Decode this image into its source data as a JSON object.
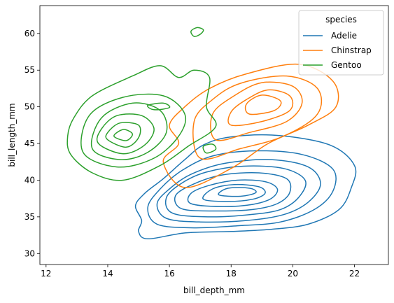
{
  "chart_data": {
    "type": "kde_contour",
    "xlabel": "bill_depth_mm",
    "ylabel": "bill_length_mm",
    "xlim": [
      11.8,
      23.1
    ],
    "ylim": [
      28.5,
      63.8
    ],
    "xticks": [
      12,
      14,
      16,
      18,
      20,
      22
    ],
    "yticks": [
      30,
      35,
      40,
      45,
      50,
      55,
      60
    ],
    "grid": false,
    "legend": {
      "title": "species",
      "placement": "top-right"
    },
    "series": [
      {
        "name": "Adelie",
        "color": "#1f77b4",
        "levels": [
          [
            [
              15.3,
              32.0
            ],
            [
              16.5,
              32.8
            ],
            [
              18.0,
              33.0
            ],
            [
              19.3,
              33.3
            ],
            [
              20.5,
              34.0
            ],
            [
              21.5,
              36.0
            ],
            [
              21.9,
              39.0
            ],
            [
              22.0,
              42.0
            ],
            [
              21.2,
              44.8
            ],
            [
              19.5,
              46.1
            ],
            [
              18.0,
              45.9
            ],
            [
              17.1,
              44.8
            ],
            [
              16.5,
              42.8
            ],
            [
              15.8,
              40.2
            ],
            [
              15.2,
              38.2
            ],
            [
              14.9,
              36.5
            ],
            [
              15.1,
              34.5
            ],
            [
              15.0,
              33.0
            ]
          ],
          [
            [
              15.6,
              34.0
            ],
            [
              16.8,
              33.5
            ],
            [
              18.3,
              33.8
            ],
            [
              19.6,
              34.3
            ],
            [
              20.7,
              36.0
            ],
            [
              21.3,
              38.5
            ],
            [
              21.3,
              41.5
            ],
            [
              20.3,
              43.5
            ],
            [
              18.8,
              44.0
            ],
            [
              17.4,
              43.3
            ],
            [
              16.4,
              41.3
            ],
            [
              15.7,
              38.8
            ],
            [
              15.3,
              36.3
            ]
          ],
          [
            [
              15.9,
              34.8
            ],
            [
              17.0,
              34.3
            ],
            [
              18.5,
              34.5
            ],
            [
              19.7,
              35.3
            ],
            [
              20.5,
              37.0
            ],
            [
              20.9,
              39.5
            ],
            [
              20.5,
              41.8
            ],
            [
              19.3,
              42.8
            ],
            [
              17.8,
              42.3
            ],
            [
              16.7,
              40.8
            ],
            [
              16.0,
              38.8
            ],
            [
              15.6,
              36.8
            ]
          ],
          [
            [
              16.1,
              35.5
            ],
            [
              17.3,
              35.0
            ],
            [
              18.6,
              35.3
            ],
            [
              19.6,
              36.0
            ],
            [
              20.2,
              37.7
            ],
            [
              20.4,
              40.0
            ],
            [
              19.7,
              41.6
            ],
            [
              18.4,
              41.9
            ],
            [
              17.2,
              41.1
            ],
            [
              16.4,
              39.6
            ],
            [
              15.9,
              37.6
            ]
          ],
          [
            [
              16.4,
              36.1
            ],
            [
              17.5,
              35.8
            ],
            [
              18.7,
              36.0
            ],
            [
              19.5,
              36.8
            ],
            [
              19.9,
              38.3
            ],
            [
              19.8,
              40.2
            ],
            [
              18.9,
              41.0
            ],
            [
              17.7,
              40.7
            ],
            [
              16.8,
              39.5
            ],
            [
              16.2,
              37.9
            ]
          ],
          [
            [
              16.7,
              36.8
            ],
            [
              17.7,
              36.4
            ],
            [
              18.7,
              36.7
            ],
            [
              19.3,
              37.5
            ],
            [
              19.5,
              38.8
            ],
            [
              19.1,
              39.8
            ],
            [
              18.2,
              40.0
            ],
            [
              17.3,
              39.3
            ],
            [
              16.7,
              38.2
            ]
          ],
          [
            [
              17.1,
              37.4
            ],
            [
              17.9,
              37.1
            ],
            [
              18.7,
              37.4
            ],
            [
              19.1,
              38.2
            ],
            [
              18.9,
              39.1
            ],
            [
              18.1,
              39.4
            ],
            [
              17.4,
              38.8
            ]
          ],
          [
            [
              17.6,
              38.0
            ],
            [
              18.3,
              37.8
            ],
            [
              18.8,
              38.3
            ],
            [
              18.6,
              38.9
            ],
            [
              17.9,
              38.9
            ]
          ]
        ]
      },
      {
        "name": "Chinstrap",
        "color": "#ff7f0e",
        "levels": [
          [
            [
              16.5,
              39.0
            ],
            [
              18.0,
              41.6
            ],
            [
              19.2,
              45.0
            ],
            [
              20.5,
              47.5
            ],
            [
              21.4,
              50.0
            ],
            [
              21.3,
              53.5
            ],
            [
              20.2,
              55.8
            ],
            [
              18.5,
              54.5
            ],
            [
              17.3,
              52.5
            ],
            [
              16.5,
              50.0
            ],
            [
              16.0,
              47.5
            ],
            [
              16.3,
              45.0
            ],
            [
              15.8,
              42.5
            ]
          ],
          [
            [
              17.0,
              43.0
            ],
            [
              18.3,
              44.3
            ],
            [
              19.7,
              46.0
            ],
            [
              20.8,
              49.0
            ],
            [
              20.8,
              52.5
            ],
            [
              19.8,
              54.2
            ],
            [
              18.3,
              53.2
            ],
            [
              17.4,
              51.0
            ],
            [
              16.8,
              48.0
            ]
          ],
          [
            [
              17.5,
              45.5
            ],
            [
              18.6,
              46.5
            ],
            [
              19.8,
              48.0
            ],
            [
              20.3,
              50.5
            ],
            [
              20.0,
              52.8
            ],
            [
              19.0,
              53.3
            ],
            [
              18.1,
              51.5
            ],
            [
              17.4,
              49.0
            ]
          ],
          [
            [
              18.0,
              47.5
            ],
            [
              19.0,
              48.0
            ],
            [
              19.9,
              49.5
            ],
            [
              19.9,
              51.5
            ],
            [
              19.2,
              52.3
            ],
            [
              18.5,
              51.0
            ],
            [
              18.0,
              49.3
            ]
          ],
          [
            [
              18.6,
              49.0
            ],
            [
              19.4,
              49.5
            ],
            [
              19.6,
              50.8
            ],
            [
              19.0,
              51.6
            ],
            [
              18.5,
              50.4
            ]
          ]
        ]
      },
      {
        "name": "Gentoo",
        "color": "#2ca02c",
        "levels": [
          [
            [
              12.8,
              43.5
            ],
            [
              13.5,
              41.0
            ],
            [
              14.5,
              40.0
            ],
            [
              15.7,
              42.0
            ],
            [
              16.6,
              44.6
            ],
            [
              17.5,
              47.3
            ],
            [
              17.2,
              50.0
            ],
            [
              17.3,
              54.0
            ],
            [
              16.8,
              55.0
            ],
            [
              16.3,
              54.0
            ],
            [
              15.7,
              55.6
            ],
            [
              14.8,
              54.2
            ],
            [
              13.5,
              51.5
            ],
            [
              12.9,
              48.5
            ],
            [
              12.7,
              46.0
            ]
          ],
          [
            [
              13.2,
              43.8
            ],
            [
              14.3,
              41.8
            ],
            [
              15.5,
              43.0
            ],
            [
              16.3,
              46.0
            ],
            [
              16.5,
              49.0
            ],
            [
              15.8,
              51.5
            ],
            [
              14.5,
              51.3
            ],
            [
              13.4,
              48.8
            ]
          ],
          [
            [
              13.5,
              44.3
            ],
            [
              14.4,
              42.8
            ],
            [
              15.3,
              43.8
            ],
            [
              15.9,
              46.5
            ],
            [
              15.7,
              49.5
            ],
            [
              14.8,
              50.5
            ],
            [
              13.8,
              48.5
            ]
          ],
          [
            [
              13.7,
              45.0
            ],
            [
              14.5,
              43.6
            ],
            [
              15.2,
              44.8
            ],
            [
              15.5,
              47.0
            ],
            [
              15.1,
              48.8
            ],
            [
              14.3,
              48.8
            ],
            [
              13.8,
              47.0
            ]
          ],
          [
            [
              14.0,
              45.5
            ],
            [
              14.6,
              44.5
            ],
            [
              15.0,
              45.8
            ],
            [
              15.0,
              47.5
            ],
            [
              14.4,
              47.8
            ],
            [
              14.0,
              46.5
            ]
          ],
          [
            [
              14.2,
              46.0
            ],
            [
              14.6,
              45.4
            ],
            [
              14.8,
              46.3
            ],
            [
              14.5,
              46.9
            ]
          ],
          [
            [
              16.8,
              59.6
            ],
            [
              17.0,
              59.9
            ],
            [
              17.1,
              60.5
            ],
            [
              16.9,
              60.8
            ],
            [
              16.7,
              60.3
            ]
          ],
          [
            [
              17.2,
              43.7
            ],
            [
              17.5,
              44.2
            ],
            [
              17.4,
              44.9
            ],
            [
              17.1,
              44.6
            ]
          ],
          [
            [
              15.5,
              49.6
            ],
            [
              16.0,
              49.9
            ],
            [
              15.8,
              50.5
            ],
            [
              15.3,
              50.2
            ]
          ]
        ]
      }
    ]
  }
}
